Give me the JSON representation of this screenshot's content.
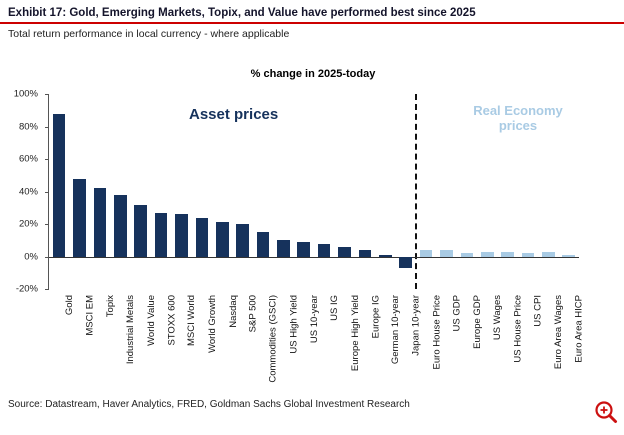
{
  "header": {
    "title": "Exhibit 17: Gold, Emerging Markets, Topix, and Value have performed best since 2025",
    "subtitle": "Total return performance in local currency - where applicable"
  },
  "chart_data": {
    "type": "bar",
    "title": "% change in 2025-today",
    "xlabel": "",
    "ylabel": "",
    "ylim": [
      -20,
      100
    ],
    "yticks": [
      100,
      80,
      60,
      40,
      20,
      0,
      -20
    ],
    "ytick_suffix": "%",
    "grid": false,
    "legend_position": "none",
    "categories": [
      "Gold",
      "MSCI EM",
      "Topix",
      "Industrial Metals",
      "World Value",
      "STOXX 600",
      "MSCI World",
      "World Growth",
      "Nasdaq",
      "S&P 500",
      "Commodities (GSCI)",
      "US High Yield",
      "US 10-year",
      "US IG",
      "Europe High Yield",
      "Europe IG",
      "German 10-year",
      "Japan 10-year",
      "Euro House Price",
      "US GDP",
      "Europe GDP",
      "US Wages",
      "US House Price",
      "US CPI",
      "Euro Area Wages",
      "Euro Area HICP"
    ],
    "values": [
      88,
      48,
      42,
      38,
      32,
      27,
      26,
      24,
      21,
      20,
      15,
      10,
      9,
      8,
      6,
      4,
      1,
      -7,
      4,
      4,
      2,
      3,
      3,
      2,
      3,
      1
    ],
    "split_index": 18,
    "groups": [
      {
        "label": "Asset prices",
        "color": "#16325c"
      },
      {
        "label": "Real Economy prices",
        "color": "#a9cbe4"
      }
    ],
    "colors": {
      "asset": "#16325c",
      "real_economy": "#a9cbe4",
      "divider": "#111111",
      "accent_rule": "#cc0000"
    }
  },
  "footer": {
    "source": "Source: Datastream, Haver Analytics, FRED, Goldman Sachs Global Investment Research"
  },
  "icons": {
    "zoom": "magnifier-icon"
  }
}
